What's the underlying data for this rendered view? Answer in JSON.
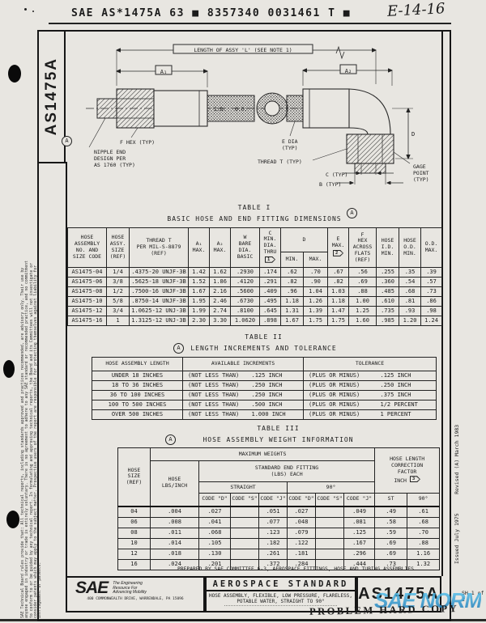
{
  "header": {
    "ocr_line": "SAE AS*1475A 63 ■ 8357340 0031461 T ■",
    "handwriting": "E-14-16"
  },
  "margins": {
    "left_code": "AS1475A",
    "rev_letter": "A",
    "disclaimer": "SAE Technical Board rules provide that: All technical reports, including standards approved and practices recommended, are advisory only. Their use by anyone engaged in industry or trade is entirely voluntary. There is no agreement to adhere to any SAE standard or recommended practice, and no commitment to conform to or be guided by any technical report. In formulating and approving technical reports, the Board and its Committees will not investigate or consider patents which may apply to the subject matter. Prospective users of the report are responsible for protecting themselves against liability for infringement of patents.",
    "issued_revised": "Issued July 1975      Revised (A) March 1983",
    "sheet_note": "SH 1 of 2"
  },
  "drawing": {
    "length_label": "LENGTH OF ASSY 'L' (SEE NOTE 1)",
    "a1": "A₁",
    "a2": "A₂",
    "f_hex": "F HEX (TYP)",
    "nipple_l1": "NIPPLE END",
    "nipple_l2": "DESIGN PER",
    "nipple_l3": "AS 1760 (TYP)",
    "id_label": "I.D.",
    "od_label": "O.D.",
    "e_dia_l1": "E DIA",
    "e_dia_l2": "(TYP)",
    "thread_label": "THREAD T (TYP)",
    "c_label": "C (TYP)",
    "b_label": "B (TYP)",
    "d_label": "D",
    "gage_l1": "GAGE",
    "gage_l2": "POINT",
    "gage_l3": "(TYP)"
  },
  "table1": {
    "title": "TABLE I",
    "subtitle": "BASIC HOSE AND END FITTING DIMENSIONS",
    "h": {
      "c1": "HOSE\nASSEMBLY\nNO. AND\nSIZE CODE",
      "c2": "HOSE\nASSY.\nSIZE\n(REF)",
      "c3": "THREAD T\nPER MIL-S-8879\n(REF)",
      "c4": "A₁\nMAX.",
      "c5": "A₂\nMAX.",
      "c6": "W\nBARE\nDIA.\nBASIC",
      "c7": "C\nMIN.\nDIA.\nTHRU",
      "c7flag": "1",
      "c8": "D",
      "c8a": "MIN.",
      "c8b": "MAX.",
      "c9": "E\nMAX.",
      "c9flag": "2",
      "c10": "F\nHEX\nACROSS\nFLATS\n(REF)",
      "c11": "HOSE\nI.D.\nMIN.",
      "c12": "HOSE\nO.D.\nMIN.",
      "c13": "O.D.\nMAX."
    },
    "rows": [
      [
        "AS1475-04",
        "1/4",
        ".4375-20 UNJF-3B",
        "1.42",
        "1.62",
        ".2930",
        ".174",
        ".62",
        ".70",
        ".67",
        ".56",
        ".255",
        ".35",
        ".39"
      ],
      [
        "AS1475-06",
        "3/8",
        ".5625-18 UNJF-3B",
        "1.52",
        "1.86",
        ".4120",
        ".291",
        ".82",
        ".90",
        ".82",
        ".69",
        ".360",
        ".54",
        ".57"
      ],
      [
        "AS1475-08",
        "1/2",
        ".7500-16 UNJF-3B",
        "1.67",
        "2.16",
        ".5600",
        ".409",
        ".96",
        "1.04",
        "1.03",
        ".88",
        ".485",
        ".68",
        ".73"
      ],
      [
        "AS1475-10",
        "5/8",
        ".8750-14 UNJF-3B",
        "1.95",
        "2.46",
        ".6730",
        ".495",
        "1.18",
        "1.26",
        "1.18",
        "1.00",
        ".610",
        ".81",
        ".86"
      ],
      [
        "AS1475-12",
        "3/4",
        "1.0625-12 UNJ-3B",
        "1.99",
        "2.74",
        ".8100",
        ".645",
        "1.31",
        "1.39",
        "1.47",
        "1.25",
        ".735",
        ".93",
        ".98"
      ],
      [
        "AS1475-16",
        "1",
        "1.3125-12 UNJ-3B",
        "2.30",
        "3.30",
        "1.0620",
        ".898",
        "1.67",
        "1.75",
        "1.75",
        "1.60",
        ".985",
        "1.20",
        "1.24"
      ]
    ]
  },
  "table2": {
    "title": "TABLE II",
    "subtitle": "LENGTH INCREMENTS AND TOLERANCE",
    "h": {
      "len": "HOSE ASSEMBLY LENGTH",
      "inc": "AVAILABLE INCREMENTS",
      "tol": "TOLERANCE"
    },
    "rows": [
      [
        "UNDER 18 INCHES",
        "(NOT LESS THAN)",
        ".125 INCH",
        "(PLUS OR MINUS)",
        ".125 INCH"
      ],
      [
        "18 TO 36 INCHES",
        "(NOT LESS THAN)",
        ".250 INCH",
        "(PLUS OR MINUS)",
        ".250 INCH"
      ],
      [
        "36 TO 100 INCHES",
        "(NOT LESS THAN)",
        ".250 INCH",
        "(PLUS OR MINUS)",
        ".375 INCH"
      ],
      [
        "100 TO 500 INCHES",
        "(NOT LESS THAN)",
        ".500 INCH",
        "(PLUS OR MINUS)",
        "1/2 PERCENT"
      ],
      [
        "OVER 500 INCHES",
        "(NOT LESS THAN)",
        "1.000 INCH",
        "(PLUS OR MINUS)",
        "1 PERCENT"
      ]
    ]
  },
  "table3": {
    "title": "TABLE III",
    "subtitle": "HOSE ASSEMBLY WEIGHT INFORMATION",
    "h": {
      "size": "HOSE\nSIZE\n(REF)",
      "max": "MAXIMUM WEIGHTS",
      "lbs": "HOSE\nLBS/INCH",
      "fitting": "STANDARD END FITTING\n(LBS) EACH",
      "straight": "STRAIGHT",
      "deg": "90°",
      "code_d": "CODE \"D\"",
      "code_s": "CODE \"S\"",
      "code_j": "CODE \"J\"",
      "corr": "HOSE LENGTH\nCORRECTION\nFACTOR\nINCH",
      "corrflag": "3",
      "st": "ST",
      "deg2": "90°"
    },
    "rows": [
      [
        "04",
        ".004",
        ".027",
        "",
        ".051",
        ".027",
        "",
        ".049",
        ".49",
        ".61"
      ],
      [
        "06",
        ".008",
        ".041",
        "",
        ".077",
        ".048",
        "",
        ".081",
        ".58",
        ".68"
      ],
      [
        "08",
        ".011",
        ".068",
        "",
        ".123",
        ".079",
        "",
        ".125",
        ".59",
        ".70"
      ],
      [
        "10",
        ".014",
        ".105",
        "",
        ".182",
        ".122",
        "",
        ".167",
        ".69",
        ".88"
      ],
      [
        "12",
        ".018",
        ".130",
        "",
        ".261",
        ".181",
        "",
        ".296",
        ".69",
        "1.16"
      ],
      [
        "16",
        ".024",
        ".201",
        "",
        ".372",
        ".284",
        "",
        ".444",
        ".73",
        "1.32"
      ]
    ]
  },
  "footer": {
    "prepared_by": "PREPARED BY SAE COMMITTEE G-3, AEROSPACE FITTINGS, HOSE AND TUBING ASSEMBLIES",
    "sae_logo": "SAE",
    "tagline1": "The Engineering",
    "tagline2": "Resource For",
    "tagline3": "Advancing Mobility",
    "address": "400 COMMONWEALTH DRIVE, WARRENDALE, PA 15096",
    "doc_type": "AEROSPACE STANDARD",
    "title_line1": "HOSE ASSEMBLY, FLEXIBLE, LOW PRESSURE, FLARELESS,",
    "title_line2": "POTABLE WATER, STRAIGHT TO 90°",
    "doc_number": "AS1475A"
  },
  "stamps": {
    "watermark": "SAE NORM",
    "problem_stamp": "PROBLEM HARD COPY"
  }
}
